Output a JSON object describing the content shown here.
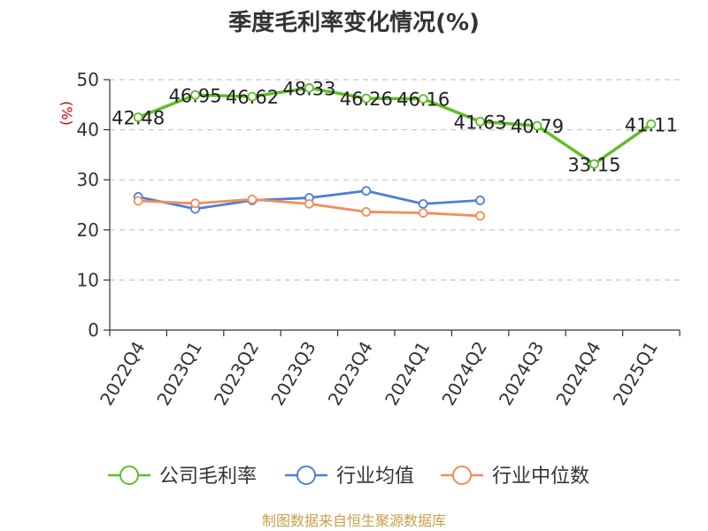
{
  "chart_data": {
    "type": "line",
    "title": "季度毛利率变化情况(%)",
    "unit_label": "(%)",
    "categories": [
      "2022Q4",
      "2023Q1",
      "2023Q2",
      "2023Q3",
      "2023Q4",
      "2024Q1",
      "2024Q2",
      "2024Q3",
      "2024Q4",
      "2025Q1"
    ],
    "ylim": [
      0,
      50
    ],
    "yticks": [
      0,
      10,
      20,
      30,
      40,
      50
    ],
    "grid": true,
    "legend_position": "bottom",
    "series": [
      {
        "name": "公司毛利率",
        "color": "#5fbf26",
        "values": [
          42.48,
          46.95,
          46.62,
          48.33,
          46.26,
          46.16,
          41.63,
          40.79,
          33.15,
          41.11
        ],
        "labels": [
          "42.48",
          "46.95",
          "46.62",
          "48.33",
          "46.26",
          "46.16",
          "41.63",
          "40.79",
          "33.15",
          "41.11"
        ]
      },
      {
        "name": "行业均值",
        "color": "#4e7fd8",
        "values": [
          26.6,
          24.2,
          25.9,
          26.4,
          27.8,
          25.2,
          25.9,
          null,
          null,
          null
        ]
      },
      {
        "name": "行业中位数",
        "color": "#f38d5a",
        "values": [
          25.8,
          25.3,
          26.1,
          25.2,
          23.6,
          23.4,
          22.8,
          null,
          null,
          null
        ]
      }
    ]
  },
  "source": "制图数据来自恒生聚源数据库"
}
